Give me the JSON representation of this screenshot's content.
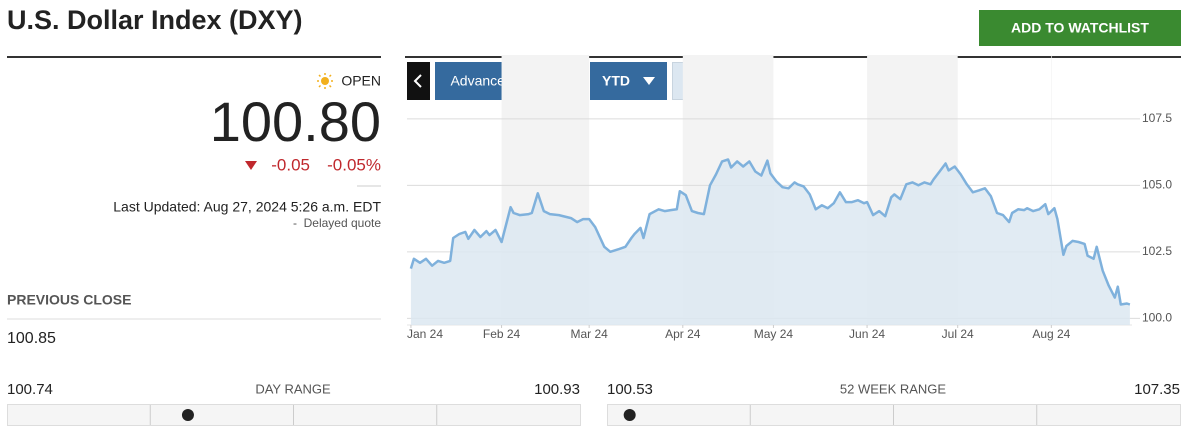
{
  "header": {
    "title": "U.S. Dollar Index (DXY)",
    "watchlist_button": "ADD TO WATCHLIST"
  },
  "quote": {
    "status": "OPEN",
    "price": "100.80",
    "change": "-0.05",
    "change_percent": "-0.05%",
    "last_updated": "Last Updated: Aug 27, 2024 5:26 a.m. EDT",
    "delay_note": "Delayed quote"
  },
  "previous_close": {
    "label": "PREVIOUS CLOSE",
    "value": "100.85"
  },
  "day_range": {
    "label": "DAY RANGE",
    "low": "100.74",
    "high": "100.93"
  },
  "week52_range": {
    "label": "52 WEEK RANGE",
    "low": "100.53",
    "high": "107.35"
  },
  "chart_controls": {
    "advanced": "Advanced Charting",
    "period": "YTD",
    "dollar": "$",
    "percent": "%"
  },
  "chart_data": {
    "type": "area",
    "color": "#7fb1dc",
    "fill": "#dce8f1",
    "grid": true,
    "x": [
      2,
      3,
      5,
      7,
      9,
      11,
      13,
      15,
      16,
      18,
      20,
      21,
      23,
      25,
      27,
      28,
      30,
      32,
      35,
      36,
      38,
      41,
      42,
      44,
      46,
      48,
      51,
      55,
      57,
      59,
      61,
      63,
      66,
      68,
      71,
      73,
      75,
      76,
      78,
      79,
      81,
      84,
      86,
      88,
      90,
      91,
      93,
      95,
      97,
      99,
      101,
      103,
      105,
      107,
      108,
      110,
      112,
      114,
      116,
      118,
      120,
      121,
      123,
      125,
      127,
      129,
      130,
      132,
      134,
      136,
      138,
      140,
      142,
      144,
      146,
      148,
      150,
      152,
      153,
      155,
      157,
      159,
      161,
      162,
      164,
      166,
      168,
      170,
      172,
      174,
      175,
      177,
      179,
      180,
      182,
      184,
      186,
      188,
      190,
      192,
      194,
      196,
      198,
      200,
      201,
      203,
      205,
      206,
      208,
      210,
      212,
      213,
      215,
      216,
      218,
      219,
      221,
      223,
      225,
      226,
      228,
      229,
      231,
      233,
      235,
      236,
      237,
      239,
      240
    ],
    "values": [
      101.87,
      102.24,
      102.09,
      102.24,
      101.98,
      102.16,
      102.09,
      102.16,
      103.02,
      103.17,
      103.25,
      102.99,
      103.32,
      103.06,
      103.28,
      103.13,
      103.32,
      102.87,
      104.18,
      103.96,
      103.88,
      103.92,
      103.96,
      104.7,
      104.03,
      103.92,
      103.88,
      103.77,
      103.62,
      103.73,
      103.73,
      103.43,
      102.69,
      102.5,
      102.61,
      102.69,
      103.02,
      103.17,
      103.4,
      103.02,
      103.92,
      104.1,
      104.03,
      104.07,
      104.1,
      104.78,
      104.63,
      104.03,
      103.96,
      103.92,
      105.0,
      105.41,
      105.9,
      105.97,
      105.67,
      105.9,
      105.71,
      105.9,
      105.52,
      105.37,
      105.93,
      105.45,
      105.15,
      104.93,
      104.89,
      105.11,
      105.04,
      104.96,
      104.66,
      104.1,
      104.25,
      104.14,
      104.33,
      104.74,
      104.37,
      104.37,
      104.44,
      104.33,
      104.37,
      103.88,
      104.03,
      103.84,
      104.55,
      104.66,
      104.48,
      105.04,
      105.11,
      105.0,
      105.11,
      105.04,
      105.22,
      105.52,
      105.82,
      105.56,
      105.71,
      105.41,
      105.04,
      104.74,
      104.81,
      104.89,
      104.59,
      103.96,
      103.88,
      103.62,
      103.96,
      104.1,
      104.07,
      104.14,
      104.03,
      104.1,
      104.29,
      103.92,
      104.14,
      103.73,
      102.39,
      102.72,
      102.91,
      102.87,
      102.8,
      102.35,
      102.24,
      102.69,
      101.79,
      101.23,
      100.78,
      101.19,
      100.52,
      100.56,
      100.52
    ],
    "xlim": [
      0.7,
      240.7
    ],
    "xticks": [
      {
        "value": 2,
        "label": "Jan 24"
      },
      {
        "value": 32,
        "label": "Feb 24"
      },
      {
        "value": 61,
        "label": "Mar 24"
      },
      {
        "value": 92,
        "label": "Apr 24"
      },
      {
        "value": 122,
        "label": "May 24"
      },
      {
        "value": 153,
        "label": "Jun 24"
      },
      {
        "value": 183,
        "label": "Jul 24"
      },
      {
        "value": 214,
        "label": "Aug 24"
      }
    ],
    "ylim": [
      99.75,
      109.9
    ],
    "yticks": [
      {
        "value": 100,
        "label": "100.0"
      },
      102.5,
      {
        "value": 105,
        "label": "105.0"
      },
      107.5
    ]
  }
}
